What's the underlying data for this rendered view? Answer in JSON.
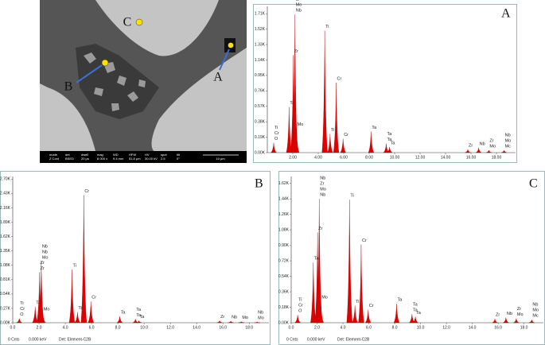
{
  "sem_image": {
    "markers": [
      "A",
      "B",
      "C"
    ],
    "info_bar": {
      "headers": [
        "mode",
        "det",
        "dwell",
        "mag",
        "WD",
        "HFW",
        "HV",
        "spot",
        "tilt"
      ],
      "values": [
        "Z Cont",
        "BSED",
        "20 μs",
        "8 000 x",
        "9.4 mm",
        "51.8 μm",
        "30.00 kV",
        "2.5",
        "0°"
      ],
      "scale": "10 μm"
    }
  },
  "chart_data": [
    {
      "type": "spectrum",
      "title": "A",
      "color": "#e00000",
      "x": [
        0.5,
        1.71,
        2.04,
        2.17,
        2.29,
        4.51,
        4.93,
        5.41,
        5.95,
        8.15,
        9.34,
        9.6,
        15.75,
        16.6,
        17.4,
        18.6
      ],
      "values": [
        120,
        560,
        1200,
        1700,
        300,
        1500,
        230,
        860,
        170,
        260,
        110,
        70,
        40,
        60,
        30,
        30
      ],
      "labels": [
        [
          "Ti",
          "Cr",
          "O"
        ],
        [
          "Ta"
        ],
        [
          "Zr"
        ],
        [
          "Nb",
          "Zr",
          "Mo",
          "Nb"
        ],
        [
          "Mo"
        ],
        [
          "Ti"
        ],
        [
          "Ti"
        ],
        [
          "Cr"
        ],
        [
          "Cr"
        ],
        [
          "Ta"
        ],
        [
          "Ta",
          "Ta"
        ],
        [
          "Ta"
        ],
        [
          "Zr"
        ],
        [
          "Nb"
        ],
        [
          "Zr",
          "Mo"
        ],
        [
          "Nb",
          "Mo",
          "Mc"
        ]
      ],
      "xlim": [
        0,
        19.5
      ],
      "xticks": [
        {
          "value": 2,
          "label": "2.00"
        },
        {
          "value": 4,
          "label": "4.00"
        },
        {
          "value": 6,
          "label": "6.00"
        },
        {
          "value": 8,
          "label": "8.00"
        },
        {
          "value": 10,
          "label": "10.00"
        },
        {
          "value": 12,
          "label": "12.00"
        },
        {
          "value": 14,
          "label": "14.00"
        },
        {
          "value": 16,
          "label": "16.00"
        },
        {
          "value": 18,
          "label": "18.00"
        }
      ],
      "ylim": [
        0,
        1800
      ],
      "yticks": [
        {
          "value": 0,
          "label": "0.00K"
        },
        {
          "value": 190,
          "label": "0.19K"
        },
        {
          "value": 380,
          "label": "0.38K"
        },
        {
          "value": 570,
          "label": "0.57K"
        },
        {
          "value": 760,
          "label": "0.76K"
        },
        {
          "value": 950,
          "label": "0.95K"
        },
        {
          "value": 1140,
          "label": "1.14K"
        },
        {
          "value": 1330,
          "label": "1.33K"
        },
        {
          "value": 1520,
          "label": "1.52K"
        },
        {
          "value": 1710,
          "label": "1.71K"
        }
      ]
    },
    {
      "type": "spectrum",
      "title": "B",
      "color": "#e00000",
      "x": [
        0.5,
        1.71,
        2.04,
        2.17,
        2.29,
        4.51,
        4.93,
        5.41,
        5.95,
        8.15,
        9.34,
        9.6,
        15.75,
        16.6,
        17.4,
        18.6
      ],
      "values": [
        80,
        300,
        950,
        1150,
        180,
        1000,
        200,
        2400,
        400,
        120,
        70,
        40,
        40,
        30,
        20,
        15
      ],
      "labels": [
        [
          "Ti",
          "Cr",
          "O"
        ],
        [
          "Ta"
        ],
        [
          "Zr",
          "Zr"
        ],
        [
          "Nb",
          "Nb",
          "Mo"
        ],
        [
          "Mo"
        ],
        [
          "Ti"
        ],
        [
          "Ti"
        ],
        [
          "Cr"
        ],
        [
          "Cr"
        ],
        [
          "Ta"
        ],
        [
          "Ta",
          "Ta"
        ],
        [
          "Ta"
        ],
        [
          "Zr"
        ],
        [
          "Nb"
        ],
        [
          "Mo"
        ],
        [
          "Nb",
          "Mo"
        ]
      ],
      "xlim": [
        0,
        19.5
      ],
      "xticks": [
        {
          "value": 0,
          "label": "0.0"
        },
        {
          "value": 2,
          "label": "2.0"
        },
        {
          "value": 4,
          "label": "4.0"
        },
        {
          "value": 6,
          "label": "6.0"
        },
        {
          "value": 8,
          "label": "8.0"
        },
        {
          "value": 10,
          "label": "10.0"
        },
        {
          "value": 12,
          "label": "12.0"
        },
        {
          "value": 14,
          "label": "14.0"
        },
        {
          "value": 16,
          "label": "16.0"
        },
        {
          "value": 18,
          "label": "18.0"
        }
      ],
      "ylim": [
        0,
        2750
      ],
      "yticks": [
        {
          "value": 0,
          "label": "0.00K"
        },
        {
          "value": 270,
          "label": "0.27K"
        },
        {
          "value": 540,
          "label": "0.54K"
        },
        {
          "value": 810,
          "label": "0.81K"
        },
        {
          "value": 1080,
          "label": "1.08K"
        },
        {
          "value": 1350,
          "label": "1.35K"
        },
        {
          "value": 1620,
          "label": "1.62K"
        },
        {
          "value": 1890,
          "label": "1.89K"
        },
        {
          "value": 2160,
          "label": "2.16K"
        },
        {
          "value": 2430,
          "label": "2.43K"
        },
        {
          "value": 2700,
          "label": "2.70K"
        }
      ],
      "footer": [
        "0 Cnts",
        "0.000 keV",
        "Det: Element-C2B"
      ]
    },
    {
      "type": "spectrum",
      "title": "C",
      "color": "#e00000",
      "x": [
        0.5,
        1.71,
        2.04,
        2.17,
        2.29,
        4.51,
        4.93,
        5.41,
        5.95,
        8.15,
        9.34,
        9.6,
        15.75,
        16.6,
        17.4,
        18.6
      ],
      "values": [
        90,
        700,
        1050,
        1440,
        250,
        1430,
        200,
        910,
        150,
        220,
        100,
        70,
        45,
        60,
        50,
        35
      ],
      "labels": [
        [
          "Ti",
          "Cr",
          "O"
        ],
        [
          "Ta"
        ],
        [
          "Zr"
        ],
        [
          "Nb",
          "Zr",
          "Mo",
          "Nb"
        ],
        [
          "Mo"
        ],
        [
          "Ti"
        ],
        [
          "Ti"
        ],
        [
          "Cr"
        ],
        [
          "Cr"
        ],
        [
          "Ta"
        ],
        [
          "Ta",
          "Ta"
        ],
        [
          "Ta"
        ],
        [
          "Zr"
        ],
        [
          "Nb"
        ],
        [
          "Zr",
          "Mo"
        ],
        [
          "Nb",
          "Mo",
          "Mc"
        ]
      ],
      "xlim": [
        0,
        19.5
      ],
      "xticks": [
        {
          "value": 0,
          "label": "0.0"
        },
        {
          "value": 2,
          "label": "2.0"
        },
        {
          "value": 4,
          "label": "4.0"
        },
        {
          "value": 6,
          "label": "6.0"
        },
        {
          "value": 8,
          "label": "8.0"
        },
        {
          "value": 10,
          "label": "10.0"
        },
        {
          "value": 12,
          "label": "12.0"
        },
        {
          "value": 14,
          "label": "14.0"
        },
        {
          "value": 16,
          "label": "16.0"
        },
        {
          "value": 18,
          "label": "18.0"
        }
      ],
      "ylim": [
        0,
        1700
      ],
      "yticks": [
        {
          "value": 0,
          "label": "0.00K"
        },
        {
          "value": 180,
          "label": "0.18K"
        },
        {
          "value": 360,
          "label": "0.36K"
        },
        {
          "value": 540,
          "label": "0.54K"
        },
        {
          "value": 720,
          "label": "0.72K"
        },
        {
          "value": 900,
          "label": "0.90K"
        },
        {
          "value": 1080,
          "label": "1.08K"
        },
        {
          "value": 1260,
          "label": "1.26K"
        },
        {
          "value": 1440,
          "label": "1.44K"
        },
        {
          "value": 1620,
          "label": "1.62K"
        }
      ],
      "footer": [
        "0 Cnts",
        "0.000 keV",
        "Det: Element-C2B"
      ]
    }
  ]
}
